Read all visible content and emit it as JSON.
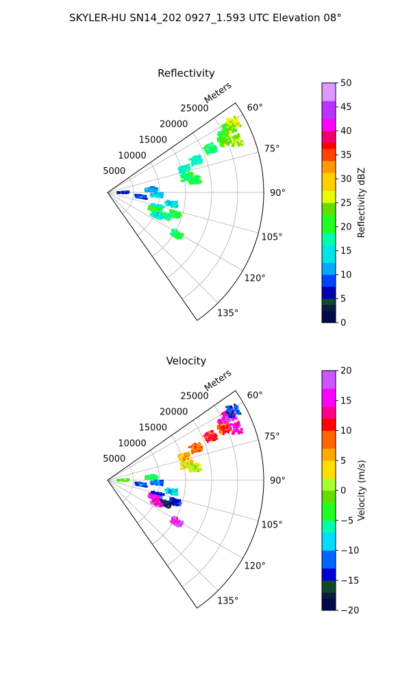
{
  "figure_title": "SKYLER-HU  SN14_202  0927_1.593 UTC Elevation 08°",
  "chart_data": [
    {
      "type": "heatmap",
      "projection": "polar-sector",
      "title": "Reflectivity",
      "radial_label": "Meters",
      "range_ticks": [
        5000,
        10000,
        15000,
        20000,
        25000
      ],
      "range_tick_labels": [
        "5000",
        "10000",
        "15000",
        "20000",
        "25000"
      ],
      "rlim": [
        0,
        30000
      ],
      "azimuth_ticks": [
        60,
        75,
        90,
        105,
        120,
        135
      ],
      "azimuth_tick_labels": [
        "60°",
        "75°",
        "90°",
        "105°",
        "120°",
        "135°"
      ],
      "azimuth_range": [
        55,
        145
      ],
      "grid": true,
      "colorbar": {
        "label": "Reflectivity dBZ",
        "range": [
          0,
          50
        ],
        "ticks": [
          0,
          5,
          10,
          15,
          20,
          25,
          30,
          35,
          40,
          45,
          50
        ],
        "tick_labels": [
          "0",
          "5",
          "10",
          "15",
          "20",
          "25",
          "30",
          "35",
          "40",
          "45",
          "50"
        ]
      },
      "echoes": [
        {
          "az": 62,
          "r": 26500,
          "value": 24
        },
        {
          "az": 64,
          "r": 25000,
          "value": 20
        },
        {
          "az": 61,
          "r": 27500,
          "value": 26
        },
        {
          "az": 67,
          "r": 21500,
          "value": 19
        },
        {
          "az": 66,
          "r": 24500,
          "value": 23
        },
        {
          "az": 68,
          "r": 26500,
          "value": 25
        },
        {
          "az": 70,
          "r": 18000,
          "value": 16
        },
        {
          "az": 73,
          "r": 15500,
          "value": 17
        },
        {
          "az": 79,
          "r": 15500,
          "value": 20
        },
        {
          "az": 82,
          "r": 17000,
          "value": 19
        },
        {
          "az": 86,
          "r": 8500,
          "value": 12
        },
        {
          "az": 90,
          "r": 3000,
          "value": 6
        },
        {
          "az": 93,
          "r": 9500,
          "value": 13
        },
        {
          "az": 97,
          "r": 6500,
          "value": 8
        },
        {
          "az": 100,
          "r": 12500,
          "value": 14
        },
        {
          "az": 106,
          "r": 10000,
          "value": 16
        },
        {
          "az": 110,
          "r": 9500,
          "value": 22
        },
        {
          "az": 108,
          "r": 13500,
          "value": 20
        },
        {
          "az": 112,
          "r": 12000,
          "value": 18
        },
        {
          "az": 115,
          "r": 10500,
          "value": 15
        },
        {
          "az": 121,
          "r": 15500,
          "value": 19
        }
      ]
    },
    {
      "type": "heatmap",
      "projection": "polar-sector",
      "title": "Velocity",
      "radial_label": "Meters",
      "range_ticks": [
        5000,
        10000,
        15000,
        20000,
        25000
      ],
      "range_tick_labels": [
        "5000",
        "10000",
        "15000",
        "20000",
        "25000"
      ],
      "rlim": [
        0,
        30000
      ],
      "azimuth_ticks": [
        60,
        75,
        90,
        105,
        120,
        135
      ],
      "azimuth_tick_labels": [
        "60°",
        "75°",
        "90°",
        "105°",
        "120°",
        "135°"
      ],
      "azimuth_range": [
        55,
        145
      ],
      "grid": true,
      "colorbar": {
        "label": "Velocity (m/s)",
        "range": [
          -20,
          20
        ],
        "ticks": [
          -20,
          -15,
          -10,
          -5,
          0,
          5,
          10,
          15,
          20
        ],
        "tick_labels": [
          "−20",
          "−15",
          "−10",
          "−5",
          "0",
          "5",
          "10",
          "15",
          "20"
        ]
      },
      "echoes": [
        {
          "az": 62,
          "r": 26500,
          "value": 16
        },
        {
          "az": 64,
          "r": 25000,
          "value": 15
        },
        {
          "az": 61,
          "r": 27500,
          "value": -13
        },
        {
          "az": 67,
          "r": 21500,
          "value": 11
        },
        {
          "az": 66,
          "r": 24500,
          "value": 10
        },
        {
          "az": 68,
          "r": 26500,
          "value": 15
        },
        {
          "az": 70,
          "r": 18000,
          "value": 8
        },
        {
          "az": 73,
          "r": 15500,
          "value": 6
        },
        {
          "az": 79,
          "r": 15500,
          "value": 4
        },
        {
          "az": 82,
          "r": 17000,
          "value": 1
        },
        {
          "az": 86,
          "r": 8500,
          "value": -4
        },
        {
          "az": 90,
          "r": 3000,
          "value": -2
        },
        {
          "az": 93,
          "r": 9500,
          "value": -11
        },
        {
          "az": 97,
          "r": 6500,
          "value": -12
        },
        {
          "az": 100,
          "r": 12500,
          "value": -8
        },
        {
          "az": 106,
          "r": 10000,
          "value": -12
        },
        {
          "az": 110,
          "r": 9500,
          "value": 16
        },
        {
          "az": 108,
          "r": 13500,
          "value": -14
        },
        {
          "az": 112,
          "r": 12000,
          "value": -17
        },
        {
          "az": 115,
          "r": 10500,
          "value": 15
        },
        {
          "az": 121,
          "r": 15500,
          "value": 17
        }
      ]
    }
  ]
}
